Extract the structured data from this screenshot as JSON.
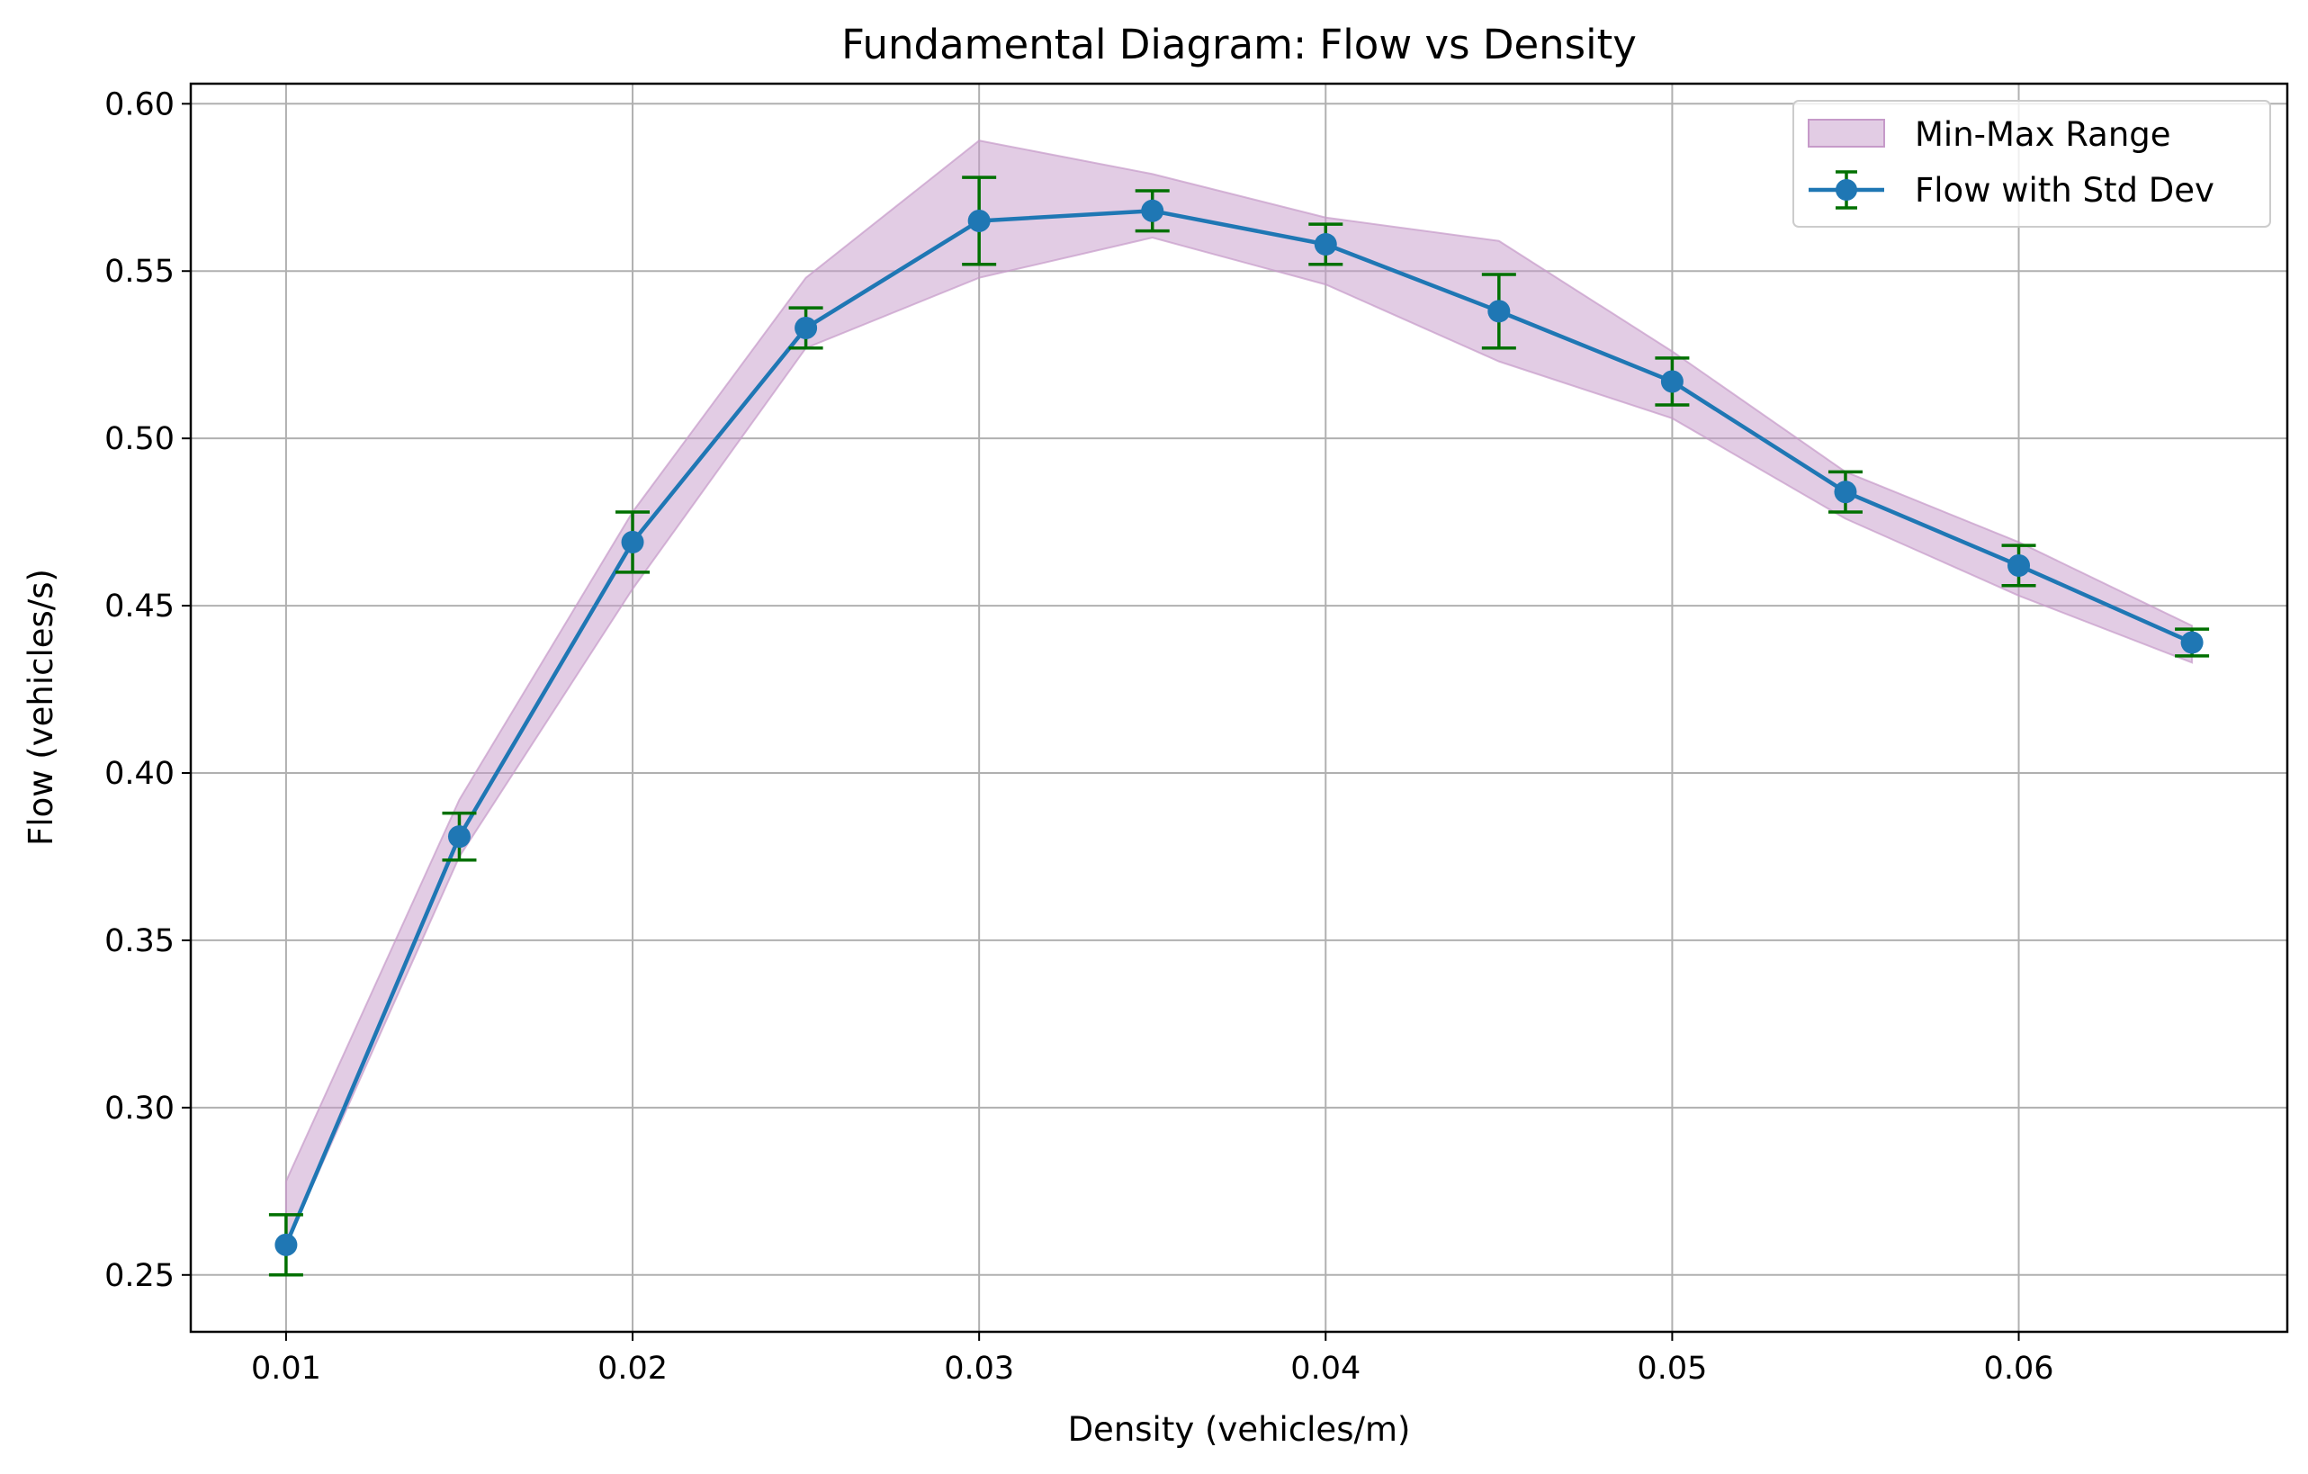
{
  "chart_data": {
    "type": "line",
    "title": "Fundamental Diagram: Flow vs Density",
    "xlabel": "Density (vehicles/m)",
    "ylabel": "Flow (vehicles/s)",
    "xlim": [
      0.00725,
      0.06775
    ],
    "ylim": [
      0.233,
      0.606
    ],
    "xticks": [
      0.01,
      0.02,
      0.03,
      0.04,
      0.05,
      0.06
    ],
    "xtick_labels": [
      "0.01",
      "0.02",
      "0.03",
      "0.04",
      "0.05",
      "0.06"
    ],
    "yticks": [
      0.25,
      0.3,
      0.35,
      0.4,
      0.45,
      0.5,
      0.55,
      0.6
    ],
    "ytick_labels": [
      "0.25",
      "0.30",
      "0.35",
      "0.40",
      "0.45",
      "0.50",
      "0.55",
      "0.60"
    ],
    "grid": true,
    "legend_position": "top-right",
    "x": [
      0.01,
      0.015,
      0.02,
      0.025,
      0.03,
      0.035,
      0.04,
      0.045,
      0.05,
      0.055,
      0.06,
      0.065
    ],
    "series": [
      {
        "name": "Flow with Std Dev",
        "kind": "line-errorbar",
        "color": "#1f77b4",
        "errorbar_color": "#007000",
        "values": [
          0.259,
          0.381,
          0.469,
          0.533,
          0.565,
          0.568,
          0.558,
          0.538,
          0.517,
          0.484,
          0.462,
          0.439
        ],
        "std": [
          0.009,
          0.007,
          0.009,
          0.006,
          0.013,
          0.006,
          0.006,
          0.011,
          0.007,
          0.006,
          0.006,
          0.004
        ]
      },
      {
        "name": "Min-Max Range",
        "kind": "band",
        "color": "#c69ac9",
        "min": [
          0.259,
          0.375,
          0.455,
          0.527,
          0.548,
          0.56,
          0.546,
          0.523,
          0.506,
          0.476,
          0.453,
          0.433
        ],
        "max": [
          0.278,
          0.392,
          0.478,
          0.548,
          0.589,
          0.579,
          0.566,
          0.559,
          0.526,
          0.49,
          0.469,
          0.444
        ]
      }
    ]
  }
}
